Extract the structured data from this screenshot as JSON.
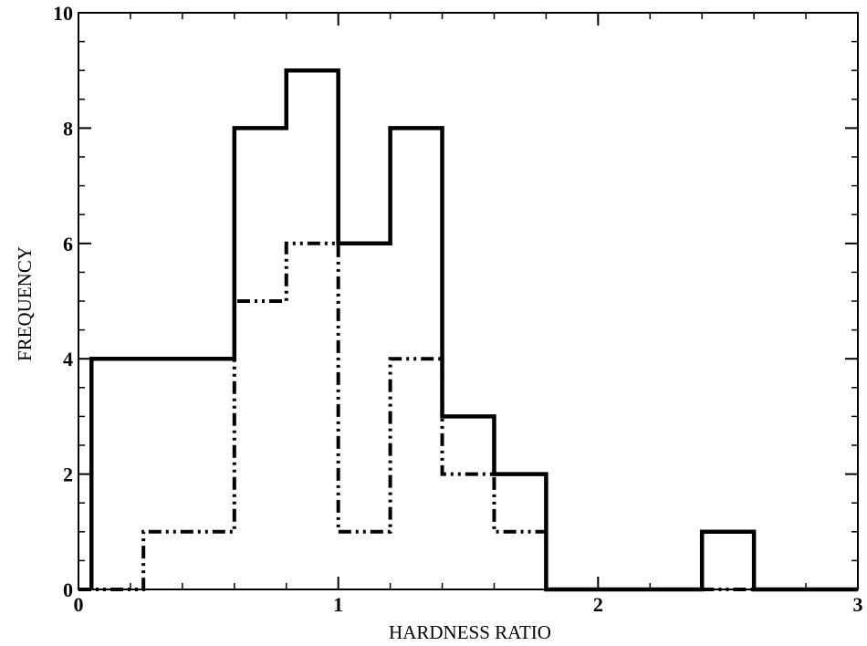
{
  "chart_data": {
    "type": "histogram",
    "title": "",
    "xlabel": "HARDNESS RATIO",
    "ylabel": "FREQUENCY",
    "xlim": [
      0,
      3
    ],
    "ylim": [
      0,
      10
    ],
    "xticks": [
      {
        "value": 0,
        "label": "0"
      },
      {
        "value": 1,
        "label": "1"
      },
      {
        "value": 2,
        "label": "2"
      },
      {
        "value": 3,
        "label": "3"
      }
    ],
    "yticks": [
      {
        "value": 0,
        "label": "0"
      },
      {
        "value": 2,
        "label": "2"
      },
      {
        "value": 4,
        "label": "4"
      },
      {
        "value": 6,
        "label": "6"
      },
      {
        "value": 8,
        "label": "8"
      },
      {
        "value": 10,
        "label": "10"
      }
    ],
    "grid": false,
    "legend": "none",
    "series": [
      {
        "style": "solid",
        "color": "#000000",
        "bins": [
          {
            "x0": 0.05,
            "x1": 0.6,
            "y": 4
          },
          {
            "x0": 0.6,
            "x1": 0.8,
            "y": 8
          },
          {
            "x0": 0.8,
            "x1": 1.0,
            "y": 9
          },
          {
            "x0": 1.0,
            "x1": 1.2,
            "y": 6
          },
          {
            "x0": 1.2,
            "x1": 1.4,
            "y": 8
          },
          {
            "x0": 1.4,
            "x1": 1.6,
            "y": 3
          },
          {
            "x0": 1.6,
            "x1": 1.8,
            "y": 2
          },
          {
            "x0": 1.8,
            "x1": 2.4,
            "y": 0
          },
          {
            "x0": 2.4,
            "x1": 2.6,
            "y": 1
          },
          {
            "x0": 2.6,
            "x1": 3.0,
            "y": 0
          }
        ]
      },
      {
        "style": "dash-dot-dot",
        "color": "#000000",
        "bins": [
          {
            "x0": 0.0,
            "x1": 0.25,
            "y": 0
          },
          {
            "x0": 0.25,
            "x1": 0.6,
            "y": 1
          },
          {
            "x0": 0.6,
            "x1": 0.8,
            "y": 5
          },
          {
            "x0": 0.8,
            "x1": 1.0,
            "y": 6
          },
          {
            "x0": 1.0,
            "x1": 1.2,
            "y": 1
          },
          {
            "x0": 1.2,
            "x1": 1.4,
            "y": 4
          },
          {
            "x0": 1.4,
            "x1": 1.6,
            "y": 2
          },
          {
            "x0": 1.6,
            "x1": 1.8,
            "y": 1
          },
          {
            "x0": 1.8,
            "x1": 3.0,
            "y": 0
          }
        ]
      }
    ]
  }
}
